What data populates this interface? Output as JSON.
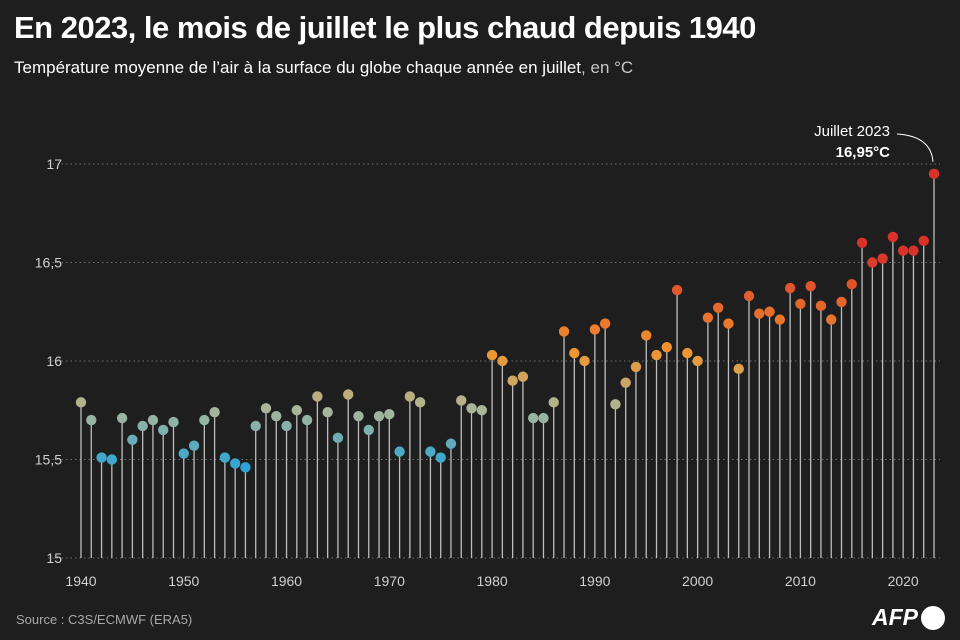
{
  "header": {
    "title": "En 2023, le mois de juillet le plus chaud depuis 1940",
    "subtitle": "Température moyenne de l’air à la surface du globe chaque année en juillet",
    "unit": ", en °C"
  },
  "footer": {
    "source": "Source : C3S/ECMWF (ERA5)",
    "logo": "AFP"
  },
  "chart_data": {
    "type": "scatter",
    "style": "lollipop",
    "title": "En 2023, le mois de juillet le plus chaud depuis 1940",
    "subtitle": "Température moyenne de l’air à la surface du globe chaque année en juillet, en °C",
    "xlabel": "",
    "ylabel": "",
    "xlim": [
      1940,
      2023
    ],
    "ylim": [
      15,
      17
    ],
    "x_ticks": [
      1940,
      1950,
      1960,
      1970,
      1980,
      1990,
      2000,
      2010,
      2020
    ],
    "y_ticks": [
      15,
      15.5,
      16,
      16.5,
      17
    ],
    "y_tick_labels": [
      "15",
      "15,5",
      "16",
      "16,5",
      "17"
    ],
    "grid": "horizontal dotted",
    "color_scale": "cool to warm by temperature: blue (#2aa3d6) → grey-green (#a9b69a) → orange (#f0952e) → red (#d8322a)",
    "annotation": {
      "year": 2023,
      "label": "Juillet 2023",
      "value_label": "16,95°C"
    },
    "x": [
      1940,
      1941,
      1942,
      1943,
      1944,
      1945,
      1946,
      1947,
      1948,
      1949,
      1950,
      1951,
      1952,
      1953,
      1954,
      1955,
      1956,
      1957,
      1958,
      1959,
      1960,
      1961,
      1962,
      1963,
      1964,
      1965,
      1966,
      1967,
      1968,
      1969,
      1970,
      1971,
      1972,
      1973,
      1974,
      1975,
      1976,
      1977,
      1978,
      1979,
      1980,
      1981,
      1982,
      1983,
      1984,
      1985,
      1986,
      1987,
      1988,
      1989,
      1990,
      1991,
      1992,
      1993,
      1994,
      1995,
      1996,
      1997,
      1998,
      1999,
      2000,
      2001,
      2002,
      2003,
      2004,
      2005,
      2006,
      2007,
      2008,
      2009,
      2010,
      2011,
      2012,
      2013,
      2014,
      2015,
      2016,
      2017,
      2018,
      2019,
      2020,
      2021,
      2022,
      2023
    ],
    "y": [
      15.79,
      15.7,
      15.51,
      15.5,
      15.71,
      15.6,
      15.67,
      15.7,
      15.65,
      15.69,
      15.53,
      15.57,
      15.7,
      15.74,
      15.51,
      15.48,
      15.46,
      15.67,
      15.76,
      15.72,
      15.67,
      15.75,
      15.7,
      15.82,
      15.74,
      15.61,
      15.83,
      15.72,
      15.65,
      15.72,
      15.73,
      15.54,
      15.82,
      15.79,
      15.54,
      15.51,
      15.58,
      15.8,
      15.76,
      15.75,
      16.03,
      16.0,
      15.9,
      15.92,
      15.71,
      15.71,
      15.79,
      16.15,
      16.04,
      16.0,
      16.16,
      16.19,
      15.78,
      15.89,
      15.97,
      16.13,
      16.03,
      16.07,
      16.36,
      16.04,
      16.0,
      16.22,
      16.27,
      16.19,
      15.96,
      16.33,
      16.24,
      16.25,
      16.21,
      16.37,
      16.29,
      16.38,
      16.28,
      16.21,
      16.3,
      16.39,
      16.6,
      16.5,
      16.52,
      16.63,
      16.56,
      16.56,
      16.61,
      16.95
    ]
  }
}
